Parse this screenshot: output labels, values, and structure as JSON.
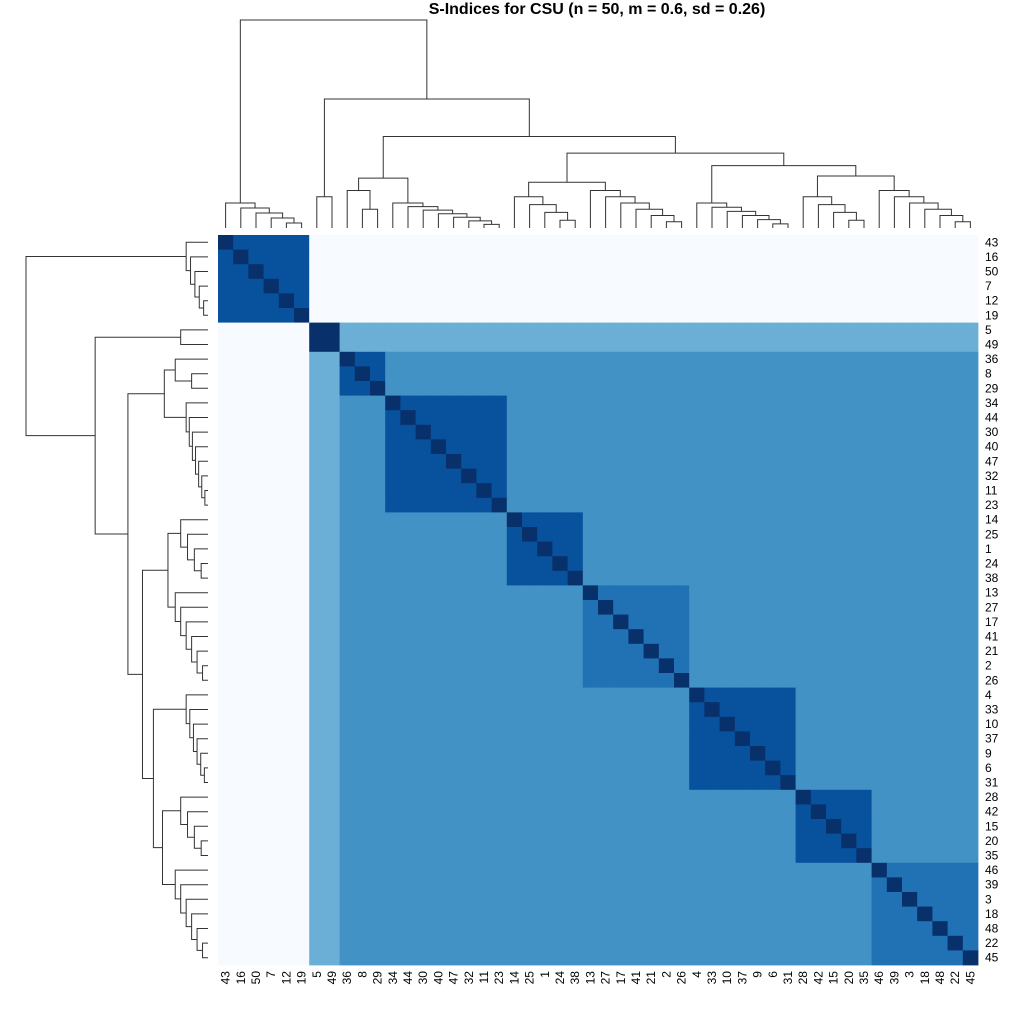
{
  "chart_data": {
    "type": "heatmap",
    "title": "S-Indices for CSU (n = 50, m = 0.6, sd = 0.26)",
    "column_labels": [
      "43",
      "16",
      "50",
      "7",
      "12",
      "19",
      "5",
      "49",
      "36",
      "8",
      "29",
      "34",
      "44",
      "30",
      "40",
      "47",
      "32",
      "11",
      "23",
      "14",
      "25",
      "1",
      "24",
      "38",
      "13",
      "27",
      "17",
      "41",
      "21",
      "2",
      "26",
      "4",
      "33",
      "10",
      "37",
      "9",
      "6",
      "31",
      "28",
      "42",
      "15",
      "20",
      "35",
      "46",
      "39",
      "3",
      "18",
      "48",
      "22",
      "45"
    ],
    "row_labels": [
      "43",
      "16",
      "50",
      "7",
      "12",
      "19",
      "5",
      "49",
      "36",
      "8",
      "29",
      "34",
      "44",
      "30",
      "40",
      "47",
      "32",
      "11",
      "23",
      "14",
      "25",
      "1",
      "24",
      "38",
      "13",
      "27",
      "17",
      "41",
      "21",
      "2",
      "26",
      "4",
      "33",
      "10",
      "37",
      "9",
      "6",
      "31",
      "28",
      "42",
      "15",
      "20",
      "35",
      "46",
      "39",
      "3",
      "18",
      "48",
      "22",
      "45"
    ],
    "value_range": [
      0,
      1
    ],
    "colorscale": [
      "#f7fbff",
      "#deebf7",
      "#c6dbef",
      "#9ecae1",
      "#6baed6",
      "#4292c6",
      "#2171b5",
      "#08519c",
      "#08306b"
    ],
    "legend": "none",
    "grid": false,
    "groups": [
      {
        "labels": [
          "43",
          "16",
          "50",
          "7",
          "12",
          "19"
        ],
        "value": 0.85
      },
      {
        "labels": [
          "5",
          "49"
        ],
        "value": 0.95
      },
      {
        "labels": [
          "36",
          "8",
          "29"
        ],
        "value": 0.92
      },
      {
        "labels": [
          "34",
          "44",
          "30",
          "40",
          "47",
          "32",
          "11",
          "23"
        ],
        "value": 0.82
      },
      {
        "labels": [
          "14",
          "25",
          "1",
          "24",
          "38"
        ],
        "value": 0.85
      },
      {
        "labels": [
          "13",
          "27",
          "17",
          "41",
          "21",
          "2",
          "26"
        ],
        "value": 0.75
      },
      {
        "labels": [
          "4",
          "33",
          "10",
          "37",
          "9",
          "6",
          "31"
        ],
        "value": 0.9
      },
      {
        "labels": [
          "28",
          "42",
          "15",
          "20",
          "35"
        ],
        "value": 0.82
      },
      {
        "labels": [
          "46",
          "39",
          "3",
          "18",
          "48",
          "22",
          "45"
        ],
        "value": 0.8
      }
    ],
    "between_group_values": {
      "first_vs_rest": 0.02,
      "second_vs_rest": 0.5,
      "default": 0.58
    },
    "row_dendrogram_order": "same as row_labels",
    "column_dendrogram_order": "same as column_labels"
  }
}
